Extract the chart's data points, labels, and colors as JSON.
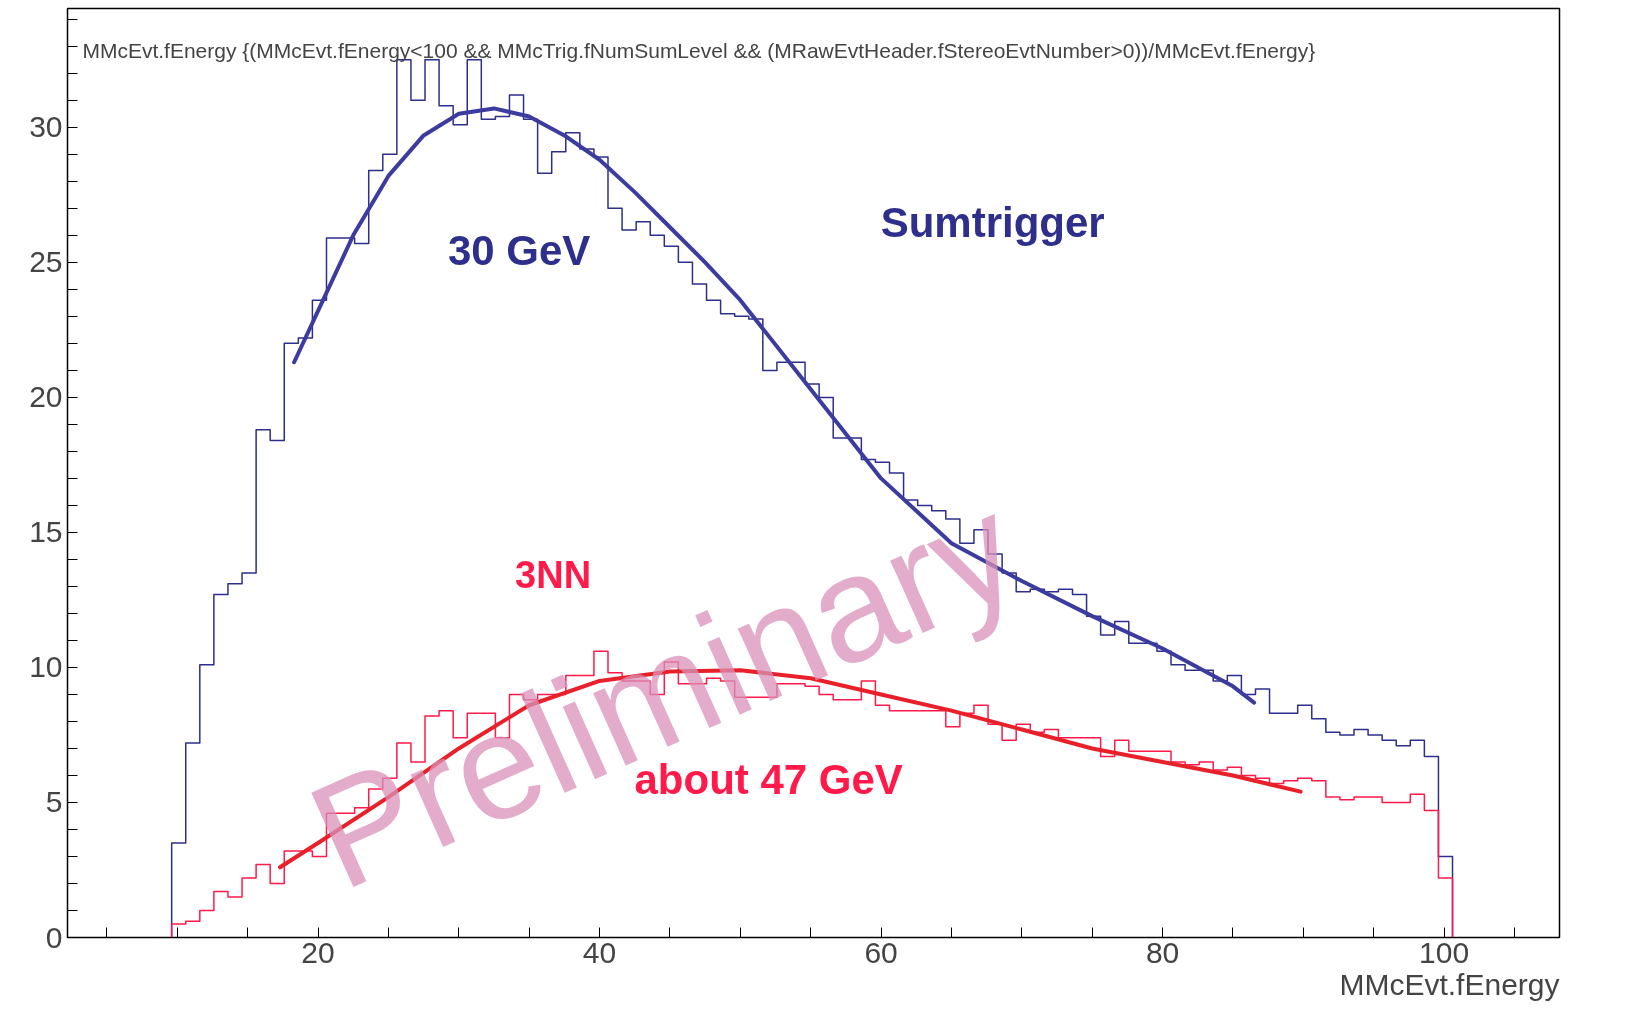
{
  "chart_data": {
    "type": "histogram",
    "title": "MMcEvt.fEnergy {(MMcEvt.fEnergy<100 && MMcTrig.fNumSumLevel && (MRawEvtHeader.fStereoEvtNumber>0))/MMcEvt.fEnergy}",
    "xlabel": "MMcEvt.fEnergy",
    "bins": [
      9.6,
      10.6,
      11.6,
      12.6,
      13.6,
      14.6,
      15.6,
      16.6,
      17.6,
      18.6,
      19.6,
      20.6,
      21.6,
      22.6,
      23.6,
      24.6,
      25.6,
      26.6,
      27.6,
      28.6,
      29.6,
      30.6,
      31.6,
      32.6,
      33.6,
      34.6,
      35.6,
      36.6,
      37.6,
      38.6,
      39.6,
      40.6,
      41.6,
      42.6,
      43.6,
      44.6,
      45.6,
      46.6,
      47.6,
      48.6,
      49.6,
      50.6,
      51.6,
      52.6,
      53.6,
      54.6,
      55.6,
      56.6,
      57.6,
      58.6,
      59.6,
      60.6,
      61.6,
      62.6,
      63.6,
      64.6,
      65.6,
      66.6,
      67.6,
      68.6,
      69.6,
      70.6,
      71.6,
      72.6,
      73.6,
      74.6,
      75.6,
      76.6,
      77.6,
      78.6,
      79.6,
      80.6,
      81.6,
      82.6,
      83.6,
      84.6,
      85.6,
      86.6,
      87.6,
      88.6,
      89.6,
      90.6,
      91.6,
      92.6,
      93.6,
      94.6,
      95.6,
      96.6,
      97.6,
      98.6,
      99.6,
      100.6
    ],
    "series": [
      {
        "name": "Sumtrigger",
        "color": "#2e2e8c",
        "values": [
          3.5,
          7.2,
          10.1,
          12.7,
          13.1,
          13.5,
          18.8,
          18.4,
          22.0,
          22.2,
          23.6,
          25.9,
          25.9,
          25.7,
          28.4,
          29.0,
          32.5,
          31.0,
          32.5,
          30.8,
          30.1,
          32.5,
          30.3,
          30.4,
          31.2,
          30.3,
          28.3,
          29.1,
          29.8,
          29.2,
          28.9,
          27.0,
          26.2,
          26.5,
          26.0,
          25.6,
          25.0,
          24.2,
          23.6,
          23.1,
          23.0,
          22.9,
          21.0,
          21.3,
          21.3,
          20.5,
          20.0,
          18.5,
          18.5,
          17.7,
          17.6,
          17.2,
          16.2,
          16.0,
          15.8,
          15.5,
          14.6,
          15.1,
          14.2,
          13.5,
          12.8,
          12.9,
          12.8,
          12.9,
          12.7,
          11.9,
          11.2,
          11.7,
          10.9,
          10.9,
          10.6,
          10.1,
          9.9,
          9.9,
          9.5,
          9.7,
          9.0,
          9.2,
          8.3,
          8.3,
          8.6,
          8.1,
          7.6,
          7.5,
          7.7,
          7.5,
          7.3,
          7.1,
          7.3,
          6.7,
          3.0
        ]
      },
      {
        "name": "3NN",
        "color": "#ff1a4a",
        "values": [
          0.5,
          0.6,
          1.0,
          1.7,
          1.5,
          2.2,
          2.7,
          2.0,
          3.2,
          3.2,
          3.0,
          4.6,
          4.6,
          4.8,
          5.5,
          5.9,
          7.2,
          6.5,
          8.2,
          8.4,
          7.4,
          8.3,
          8.3,
          7.4,
          9.0,
          8.8,
          9.0,
          9.0,
          9.7,
          9.7,
          10.6,
          9.8,
          9.5,
          9.5,
          9.0,
          10.2,
          9.4,
          9.4,
          9.6,
          9.5,
          8.9,
          8.9,
          8.9,
          9.4,
          9.4,
          9.3,
          9.0,
          8.8,
          8.8,
          9.5,
          8.6,
          8.4,
          8.4,
          8.4,
          8.4,
          7.8,
          8.3,
          8.6,
          7.9,
          7.3,
          7.9,
          7.6,
          7.7,
          7.4,
          7.4,
          7.4,
          6.7,
          7.3,
          6.9,
          6.9,
          6.9,
          6.5,
          6.4,
          6.5,
          6.2,
          6.3,
          6.0,
          5.9,
          5.7,
          5.8,
          5.9,
          5.8,
          5.2,
          5.1,
          5.2,
          5.2,
          5.0,
          5.0,
          5.3,
          4.7,
          2.2
        ]
      },
      {
        "type": "line",
        "color": "#3c3ca0",
        "x": [
          18.3,
          20,
          22.5,
          25,
          27.5,
          30,
          32.5,
          35,
          37.5,
          40,
          42.5,
          45,
          47.5,
          50,
          55,
          60,
          65,
          70,
          75,
          80,
          85,
          86.5
        ],
        "values": [
          21.3,
          23.2,
          26.0,
          28.2,
          29.7,
          30.5,
          30.7,
          30.4,
          29.7,
          28.8,
          27.6,
          26.3,
          25.0,
          23.6,
          20.3,
          17.0,
          14.6,
          13.2,
          11.9,
          10.7,
          9.3,
          8.7
        ]
      },
      {
        "type": "line",
        "color": "#e8202a",
        "x": [
          17.3,
          20,
          25,
          30,
          35,
          40,
          45,
          50,
          55,
          60,
          65,
          70,
          75,
          80,
          85,
          89.8
        ],
        "values": [
          2.6,
          3.5,
          5.2,
          7.0,
          8.6,
          9.5,
          9.85,
          9.9,
          9.6,
          9.0,
          8.4,
          7.7,
          7.0,
          6.5,
          6.0,
          5.4
        ]
      }
    ],
    "annotations": [
      "30 GeV",
      "about 47 GeV",
      "Preliminary"
    ],
    "xlim": [
      2.2,
      108.2
    ],
    "ylim": [
      0,
      34.4
    ],
    "xticks": [
      {
        "value": 5,
        "label": null
      },
      {
        "value": 10,
        "label": null
      },
      {
        "value": 15,
        "label": null
      },
      20,
      {
        "value": 25,
        "label": null
      },
      {
        "value": 30,
        "label": null
      },
      {
        "value": 35,
        "label": null
      },
      40,
      {
        "value": 45,
        "label": null
      },
      {
        "value": 50,
        "label": null
      },
      {
        "value": 55,
        "label": null
      },
      60,
      {
        "value": 65,
        "label": null
      },
      {
        "value": 70,
        "label": null
      },
      {
        "value": 75,
        "label": null
      },
      80,
      {
        "value": 85,
        "label": null
      },
      {
        "value": 90,
        "label": null
      },
      {
        "value": 95,
        "label": null
      },
      100,
      {
        "value": 105,
        "label": null
      }
    ],
    "yticks": [
      0,
      {
        "value": 1,
        "label": null
      },
      {
        "value": 2,
        "label": null
      },
      {
        "value": 3,
        "label": null
      },
      {
        "value": 4,
        "label": null
      },
      5,
      {
        "value": 6,
        "label": null
      },
      {
        "value": 7,
        "label": null
      },
      {
        "value": 8,
        "label": null
      },
      {
        "value": 9,
        "label": null
      },
      10,
      {
        "value": 11,
        "label": null
      },
      {
        "value": 12,
        "label": null
      },
      {
        "value": 13,
        "label": null
      },
      {
        "value": 14,
        "label": null
      },
      15,
      {
        "value": 16,
        "label": null
      },
      {
        "value": 17,
        "label": null
      },
      {
        "value": 18,
        "label": null
      },
      {
        "value": 19,
        "label": null
      },
      20,
      {
        "value": 21,
        "label": null
      },
      {
        "value": 22,
        "label": null
      },
      {
        "value": 23,
        "label": null
      },
      {
        "value": 24,
        "label": null
      },
      25,
      {
        "value": 26,
        "label": null
      },
      {
        "value": 27,
        "label": null
      },
      {
        "value": 28,
        "label": null
      },
      {
        "value": 29,
        "label": null
      },
      30,
      {
        "value": 31,
        "label": null
      },
      {
        "value": 32,
        "label": null
      },
      {
        "value": 33,
        "label": null
      },
      {
        "value": 34,
        "label": null
      }
    ],
    "grid": false,
    "legend": false
  }
}
